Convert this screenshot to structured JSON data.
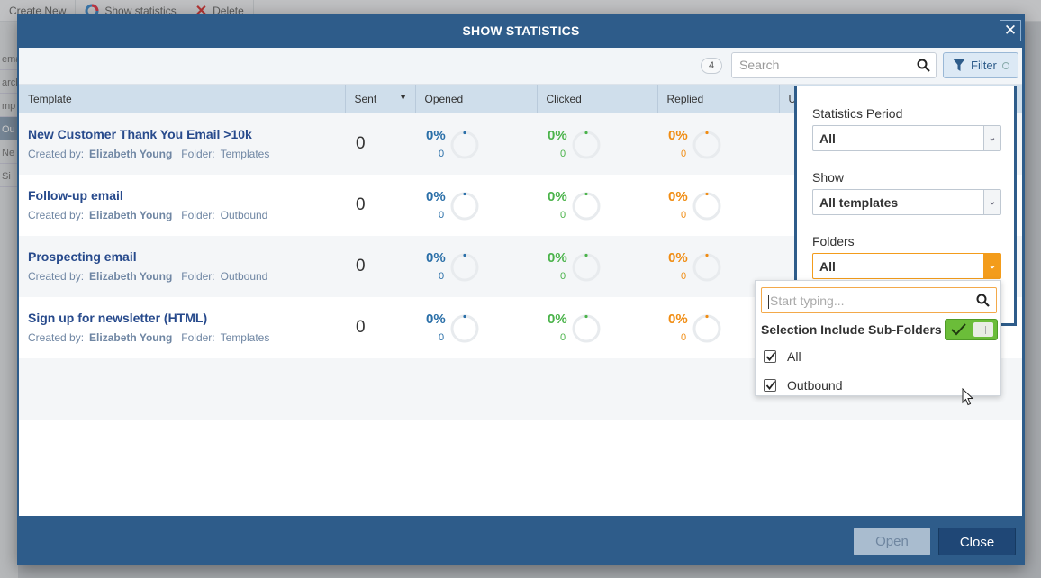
{
  "background": {
    "toolbar": [
      "Create New",
      "Show statistics",
      "Delete"
    ],
    "sidebar_fragments": [
      "ema",
      "arch",
      "mp",
      "Ou",
      "Ne",
      "Si"
    ]
  },
  "dialog": {
    "title": "SHOW STATISTICS",
    "close_glyph": "✕",
    "count": "4",
    "search_placeholder": "Search",
    "filter_label": "Filter"
  },
  "table": {
    "columns": [
      "Template",
      "Sent",
      "Opened",
      "Clicked",
      "Replied",
      "U"
    ],
    "rows": [
      {
        "name": "New Customer Thank You Email >10k",
        "created_by_label": "Created by:",
        "created_by": "Elizabeth Young",
        "folder_label": "Folder:",
        "folder": "Templates",
        "sent": "0",
        "opened_pct": "0%",
        "opened": "0",
        "clicked_pct": "0%",
        "clicked": "0",
        "replied_pct": "0%",
        "replied": "0"
      },
      {
        "name": "Follow-up email",
        "created_by_label": "Created by:",
        "created_by": "Elizabeth Young",
        "folder_label": "Folder:",
        "folder": "Outbound",
        "sent": "0",
        "opened_pct": "0%",
        "opened": "0",
        "clicked_pct": "0%",
        "clicked": "0",
        "replied_pct": "0%",
        "replied": "0"
      },
      {
        "name": "Prospecting email",
        "created_by_label": "Created by:",
        "created_by": "Elizabeth Young",
        "folder_label": "Folder:",
        "folder": "Outbound",
        "sent": "0",
        "opened_pct": "0%",
        "opened": "0",
        "clicked_pct": "0%",
        "clicked": "0",
        "replied_pct": "0%",
        "replied": "0"
      },
      {
        "name": "Sign up for newsletter (HTML)",
        "created_by_label": "Created by:",
        "created_by": "Elizabeth Young",
        "folder_label": "Folder:",
        "folder": "Templates",
        "sent": "0",
        "opened_pct": "0%",
        "opened": "0",
        "clicked_pct": "0%",
        "clicked": "0",
        "replied_pct": "0%",
        "replied": "0"
      }
    ]
  },
  "filter_panel": {
    "period_label": "Statistics Period",
    "period_value": "All",
    "show_label": "Show",
    "show_value": "All templates",
    "folders_label": "Folders",
    "folders_value": "All"
  },
  "folders_dropdown": {
    "placeholder": "Start typing...",
    "subfolders_label": "Selection Include Sub-Folders",
    "subfolders_on": true,
    "options": [
      {
        "label": "All",
        "checked": true
      },
      {
        "label": "Outbound",
        "checked": true
      }
    ]
  },
  "footer": {
    "open_label": "Open",
    "close_label": "Close"
  },
  "colors": {
    "dialog_blue": "#2e5c8a",
    "opened": "#2a6fa8",
    "clicked": "#4ab34a",
    "replied": "#f08c12",
    "unsubscribed": "#d9402b",
    "accent_orange": "#f39c1b"
  }
}
